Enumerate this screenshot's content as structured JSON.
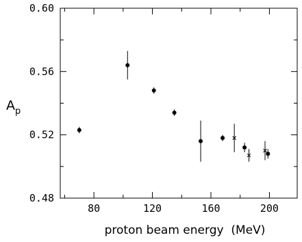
{
  "chart_data": {
    "type": "scatter",
    "title": "",
    "xlabel": "proton beam energy  (MeV)",
    "ylabel_main": "A",
    "ylabel_sub": "p",
    "xlim": [
      57,
      219
    ],
    "ylim": [
      0.48,
      0.6
    ],
    "x_ticks": [
      80,
      120,
      160,
      200
    ],
    "x_tick_labels": [
      "80",
      "120",
      "160",
      "200"
    ],
    "y_ticks": [
      0.48,
      0.52,
      0.56,
      0.6
    ],
    "y_tick_labels": [
      "0.48",
      "0.52",
      "0.56",
      "0.60"
    ],
    "grid": false,
    "series": [
      {
        "marker": "dot",
        "points": [
          {
            "x": 70,
            "y": 0.523,
            "err": 0.002
          },
          {
            "x": 103,
            "y": 0.564,
            "err": 0.009
          },
          {
            "x": 121,
            "y": 0.548,
            "err": 0.002
          },
          {
            "x": 135,
            "y": 0.534,
            "err": 0.002
          },
          {
            "x": 153,
            "y": 0.516,
            "err": 0.013
          },
          {
            "x": 168,
            "y": 0.518,
            "err": 0.002
          },
          {
            "x": 183,
            "y": 0.512,
            "err": 0.003
          },
          {
            "x": 199,
            "y": 0.508,
            "err": 0.003
          }
        ]
      },
      {
        "marker": "cross",
        "points": [
          {
            "x": 176,
            "y": 0.518,
            "err": 0.009
          },
          {
            "x": 186,
            "y": 0.507,
            "err": 0.004
          },
          {
            "x": 197,
            "y": 0.51,
            "err": 0.006
          }
        ]
      }
    ]
  }
}
